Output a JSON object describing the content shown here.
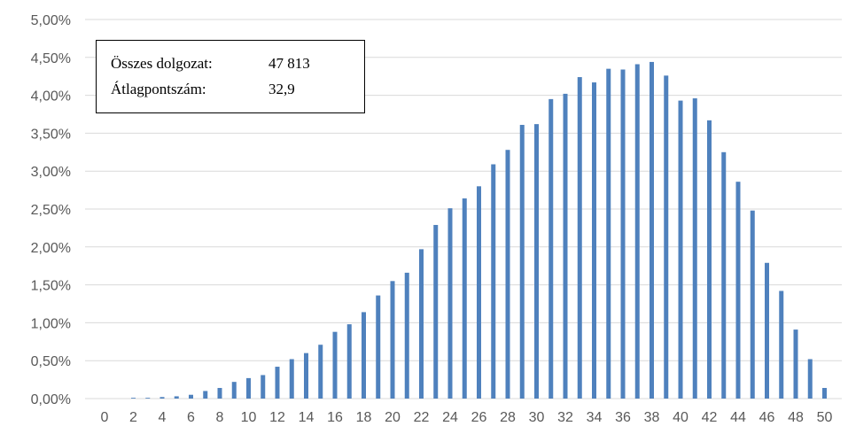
{
  "chart_data": {
    "type": "bar",
    "title": "",
    "xlabel": "",
    "ylabel": "",
    "x": [
      0,
      1,
      2,
      3,
      4,
      5,
      6,
      7,
      8,
      9,
      10,
      11,
      12,
      13,
      14,
      15,
      16,
      17,
      18,
      19,
      20,
      21,
      22,
      23,
      24,
      25,
      26,
      27,
      28,
      29,
      30,
      31,
      32,
      33,
      34,
      35,
      36,
      37,
      38,
      39,
      40,
      41,
      42,
      43,
      44,
      45,
      46,
      47,
      48,
      49,
      50
    ],
    "x_tick_labels": [
      "0",
      "2",
      "4",
      "6",
      "8",
      "10",
      "12",
      "14",
      "16",
      "18",
      "20",
      "22",
      "24",
      "26",
      "28",
      "30",
      "32",
      "34",
      "36",
      "38",
      "40",
      "42",
      "44",
      "46",
      "48",
      "50"
    ],
    "x_tick_values": [
      0,
      2,
      4,
      6,
      8,
      10,
      12,
      14,
      16,
      18,
      20,
      22,
      24,
      26,
      28,
      30,
      32,
      34,
      36,
      38,
      40,
      42,
      44,
      46,
      48,
      50
    ],
    "values": [
      0,
      0,
      0.01,
      0.01,
      0.02,
      0.03,
      0.05,
      0.1,
      0.14,
      0.22,
      0.27,
      0.31,
      0.42,
      0.52,
      0.6,
      0.71,
      0.88,
      0.98,
      1.14,
      1.36,
      1.55,
      1.66,
      1.97,
      2.29,
      2.51,
      2.64,
      2.8,
      3.09,
      3.28,
      3.61,
      3.62,
      3.95,
      4.02,
      4.24,
      4.17,
      4.35,
      4.34,
      4.41,
      4.44,
      4.26,
      3.93,
      3.96,
      3.67,
      3.25,
      2.86,
      2.48,
      1.79,
      1.42,
      0.91,
      0.52,
      0.14
    ],
    "ylim": [
      0,
      5
    ],
    "y_ticks": [
      0,
      0.5,
      1,
      1.5,
      2,
      2.5,
      3,
      3.5,
      4,
      4.5,
      5
    ],
    "y_tick_labels": [
      "0,00%",
      "0,50%",
      "1,00%",
      "1,50%",
      "2,00%",
      "2,50%",
      "3,00%",
      "3,50%",
      "4,00%",
      "4,50%",
      "5,00%"
    ],
    "grid": true,
    "bar_color": "#4f81bd"
  },
  "info_box": {
    "rows": [
      {
        "label": "Összes dolgozat:",
        "value": "47 813"
      },
      {
        "label": "Átlagpontszám:",
        "value": "32,9"
      }
    ]
  }
}
